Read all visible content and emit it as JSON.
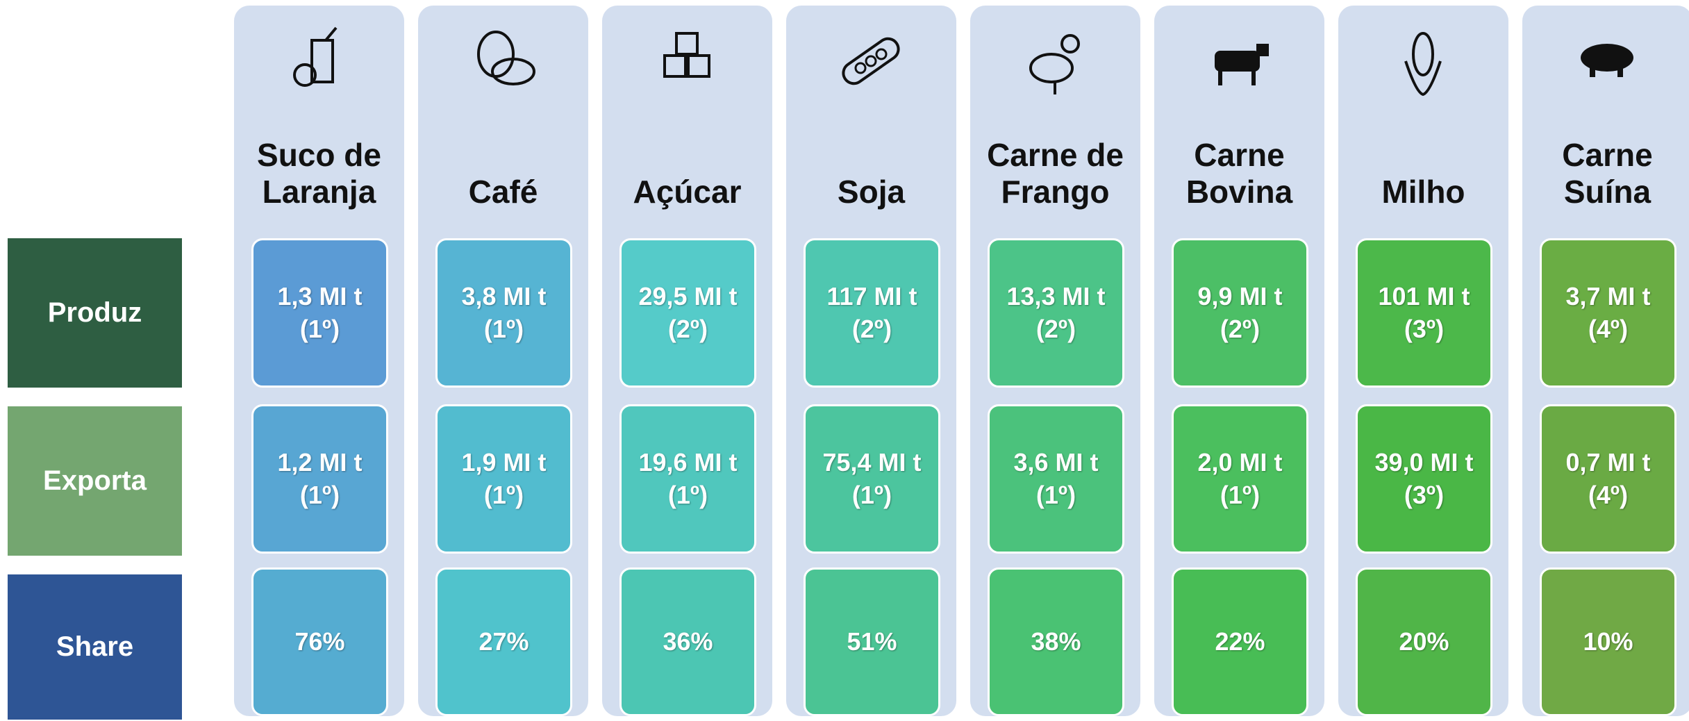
{
  "rows": [
    "Produz",
    "Exporta",
    "Share"
  ],
  "columns": [
    {
      "name": "Suco de Laranja",
      "produz": {
        "value": "1,3 MI t",
        "rank": "(1º)"
      },
      "exporta": {
        "value": "1,2 MI t",
        "rank": "(1º)"
      },
      "share": "76%"
    },
    {
      "name": "Café",
      "produz": {
        "value": "3,8 MI t",
        "rank": "(1º)"
      },
      "exporta": {
        "value": "1,9 MI t",
        "rank": "(1º)"
      },
      "share": "27%"
    },
    {
      "name": "Açúcar",
      "produz": {
        "value": "29,5 MI t",
        "rank": "(2º)"
      },
      "exporta": {
        "value": "19,6 MI t",
        "rank": "(1º)"
      },
      "share": "36%"
    },
    {
      "name": "Soja",
      "produz": {
        "value": "117 MI t",
        "rank": "(2º)"
      },
      "exporta": {
        "value": "75,4 MI t",
        "rank": "(1º)"
      },
      "share": "51%"
    },
    {
      "name": "Carne de Frango",
      "produz": {
        "value": "13,3 MI t",
        "rank": "(2º)"
      },
      "exporta": {
        "value": "3,6 MI t",
        "rank": "(1º)"
      },
      "share": "38%"
    },
    {
      "name": "Carne Bovina",
      "produz": {
        "value": "9,9 MI t",
        "rank": "(2º)"
      },
      "exporta": {
        "value": "2,0 MI t",
        "rank": "(1º)"
      },
      "share": "22%"
    },
    {
      "name": "Milho",
      "produz": {
        "value": "101 MI t",
        "rank": "(3º)"
      },
      "exporta": {
        "value": "39,0 MI t",
        "rank": "(3º)"
      },
      "share": "20%"
    },
    {
      "name": "Carne Suína",
      "produz": {
        "value": "3,7 MI t",
        "rank": "(4º)"
      },
      "exporta": {
        "value": "0,7 MI t",
        "rank": "(4º)"
      },
      "share": "10%"
    }
  ]
}
